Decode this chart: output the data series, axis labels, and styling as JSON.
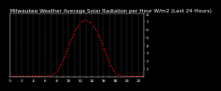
{
  "title": "Milwaukee Weather Average Solar Radiation per Hour W/m2 (Last 24 Hours)",
  "hours": [
    0,
    1,
    2,
    3,
    4,
    5,
    6,
    7,
    8,
    9,
    10,
    11,
    12,
    13,
    14,
    15,
    16,
    17,
    18,
    19,
    20,
    21,
    22,
    23
  ],
  "values": [
    0,
    0,
    0,
    0,
    0,
    0,
    1,
    8,
    50,
    180,
    380,
    560,
    680,
    720,
    670,
    560,
    380,
    170,
    40,
    5,
    0,
    0,
    0,
    0
  ],
  "line_color": "#ff0000",
  "bg_color": "#000000",
  "plot_bg": "#000000",
  "ylim": [
    0,
    800
  ],
  "xlim": [
    0,
    23
  ],
  "grid_color": "#555555",
  "title_fontsize": 4.2,
  "tick_fontsize": 3.2,
  "text_color": "#ffffff"
}
